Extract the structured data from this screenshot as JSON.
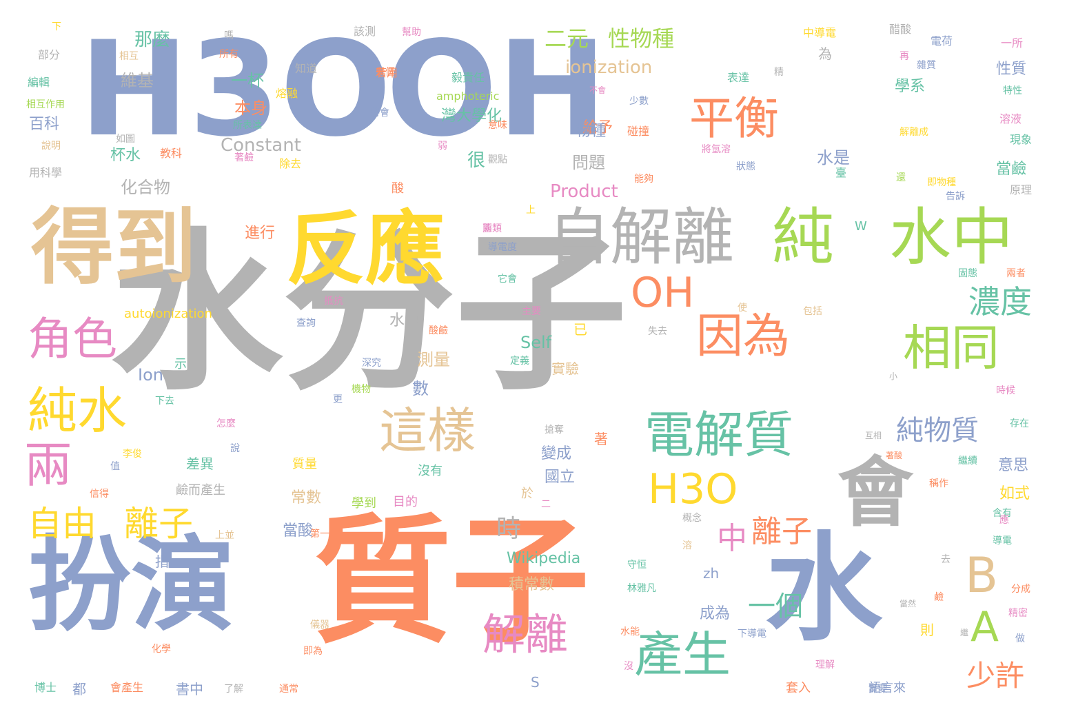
{
  "palette": {
    "periwinkle": "#8da0cb",
    "gray": "#b3b3b3",
    "orange": "#fc8d62",
    "tan": "#e5c494",
    "yellow": "#ffd92f",
    "green": "#a6d854",
    "teal": "#66c2a5",
    "pink": "#e78ac3"
  },
  "words": [
    {
      "text": "H3O",
      "size": 190,
      "color": "#8da0cb"
    },
    {
      "text": "OH",
      "size": 190,
      "color": "#8da0cb"
    },
    {
      "text": "水分子",
      "size": 250,
      "color": "#b3b3b3"
    },
    {
      "text": "質子",
      "size": 200,
      "color": "#fc8d62"
    },
    {
      "text": "扮演",
      "size": 150,
      "color": "#8da0cb"
    },
    {
      "text": "水",
      "size": 170,
      "color": "#8da0cb"
    },
    {
      "text": "得到",
      "size": 120,
      "color": "#e5c494"
    },
    {
      "text": "反應",
      "size": 115,
      "color": "#ffd92f"
    },
    {
      "text": "自解離",
      "size": 90,
      "color": "#b3b3b3"
    },
    {
      "text": "純",
      "size": 90,
      "color": "#a6d854"
    },
    {
      "text": "水中",
      "size": 90,
      "color": "#a6d854"
    },
    {
      "text": "會",
      "size": 110,
      "color": "#b3b3b3"
    },
    {
      "text": "平衡",
      "size": 65,
      "color": "#fc8d62"
    },
    {
      "text": "OH",
      "size": 60,
      "color": "#fc8d62"
    },
    {
      "text": "因為",
      "size": 68,
      "color": "#fc8d62"
    },
    {
      "text": "相同",
      "size": 70,
      "color": "#a6d854"
    },
    {
      "text": "角色",
      "size": 65,
      "color": "#e78ac3"
    },
    {
      "text": "純水",
      "size": 72,
      "color": "#ffd92f"
    },
    {
      "text": "兩",
      "size": 70,
      "color": "#e78ac3"
    },
    {
      "text": "這樣",
      "size": 70,
      "color": "#e5c494"
    },
    {
      "text": "電解質",
      "size": 72,
      "color": "#66c2a5"
    },
    {
      "text": "H3O",
      "size": 60,
      "color": "#ffd92f"
    },
    {
      "text": "自由",
      "size": 50,
      "color": "#ffd92f"
    },
    {
      "text": "離子",
      "size": 50,
      "color": "#ffd92f"
    },
    {
      "text": "中",
      "size": 44,
      "color": "#e78ac3"
    },
    {
      "text": "離子",
      "size": 44,
      "color": "#fc8d62"
    },
    {
      "text": "解離",
      "size": 62,
      "color": "#e78ac3"
    },
    {
      "text": "產生",
      "size": 70,
      "color": "#66c2a5"
    },
    {
      "text": "B",
      "size": 70,
      "color": "#e5c494"
    },
    {
      "text": "A",
      "size": 60,
      "color": "#a6d854"
    },
    {
      "text": "濃度",
      "size": 46,
      "color": "#66c2a5"
    },
    {
      "text": "純物質",
      "size": 40,
      "color": "#8da0cb"
    },
    {
      "text": "一個",
      "size": 40,
      "color": "#66c2a5"
    },
    {
      "text": "少許",
      "size": 42,
      "color": "#fc8d62"
    },
    {
      "text": "時",
      "size": 36,
      "color": "#b3b3b3"
    },
    {
      "text": "二元",
      "size": 32,
      "color": "#a6d854"
    },
    {
      "text": "性物種",
      "size": 32,
      "color": "#a6d854"
    },
    {
      "text": "那麼",
      "size": 26,
      "color": "#66c2a5"
    },
    {
      "text": "ionization",
      "size": 26,
      "color": "#e5c494"
    },
    {
      "text": "一杯",
      "size": 24,
      "color": "#66c2a5"
    },
    {
      "text": "維基",
      "size": 24,
      "color": "#b3b3b3"
    },
    {
      "text": "本身",
      "size": 24,
      "color": "#fc8d62"
    },
    {
      "text": "百科",
      "size": 22,
      "color": "#8da0cb"
    },
    {
      "text": "給予",
      "size": 22,
      "color": "#fc8d62"
    },
    {
      "text": "灣大學化",
      "size": 22,
      "color": "#66c2a5"
    },
    {
      "text": "物種",
      "size": 22,
      "color": "#8da0cb"
    },
    {
      "text": "Constant",
      "size": 26,
      "color": "#b3b3b3"
    },
    {
      "text": "杯水",
      "size": 22,
      "color": "#66c2a5"
    },
    {
      "text": "很",
      "size": 26,
      "color": "#66c2a5"
    },
    {
      "text": "問題",
      "size": 24,
      "color": "#b3b3b3"
    },
    {
      "text": "化合物",
      "size": 24,
      "color": "#b3b3b3"
    },
    {
      "text": "Product",
      "size": 26,
      "color": "#e78ac3"
    },
    {
      "text": "水是",
      "size": 24,
      "color": "#8da0cb"
    },
    {
      "text": "當鹼",
      "size": 22,
      "color": "#66c2a5"
    },
    {
      "text": "學系",
      "size": 22,
      "color": "#66c2a5"
    },
    {
      "text": "性質",
      "size": 22,
      "color": "#8da0cb"
    },
    {
      "text": "進行",
      "size": 22,
      "color": "#fc8d62"
    },
    {
      "text": "autoionization",
      "size": 18,
      "color": "#ffd92f"
    },
    {
      "text": "水中",
      "size": 22,
      "color": "#b3b3b3"
    },
    {
      "text": "測量",
      "size": 24,
      "color": "#e5c494"
    },
    {
      "text": "數",
      "size": 24,
      "color": "#8da0cb"
    },
    {
      "text": "Self",
      "size": 24,
      "color": "#66c2a5"
    },
    {
      "text": "實驗",
      "size": 20,
      "color": "#e5c494"
    },
    {
      "text": "Ion",
      "size": 24,
      "color": "#8da0cb"
    },
    {
      "text": "變成",
      "size": 22,
      "color": "#8da0cb"
    },
    {
      "text": "國立",
      "size": 22,
      "color": "#8da0cb"
    },
    {
      "text": "常數",
      "size": 22,
      "color": "#e5c494"
    },
    {
      "text": "當酸",
      "size": 22,
      "color": "#8da0cb"
    },
    {
      "text": "如式",
      "size": 22,
      "color": "#ffd92f"
    },
    {
      "text": "意思",
      "size": 22,
      "color": "#8da0cb"
    },
    {
      "text": "Wikipedia",
      "size": 22,
      "color": "#66c2a5"
    },
    {
      "text": "積常數",
      "size": 22,
      "color": "#e5c494"
    },
    {
      "text": "成為",
      "size": 22,
      "color": "#8da0cb"
    },
    {
      "text": "zh",
      "size": 20,
      "color": "#8da0cb"
    },
    {
      "text": "都",
      "size": 20,
      "color": "#8da0cb"
    },
    {
      "text": "書中",
      "size": 20,
      "color": "#8da0cb"
    },
    {
      "text": "指",
      "size": 20,
      "color": "#8da0cb"
    },
    {
      "text": "差異",
      "size": 20,
      "color": "#66c2a5"
    },
    {
      "text": "鹼而產生",
      "size": 18,
      "color": "#b3b3b3"
    },
    {
      "text": "質量",
      "size": 18,
      "color": "#ffd92f"
    },
    {
      "text": "沒有",
      "size": 18,
      "color": "#66c2a5"
    },
    {
      "text": "學到",
      "size": 18,
      "color": "#a6d854"
    },
    {
      "text": "目的",
      "size": 18,
      "color": "#e78ac3"
    },
    {
      "text": "則",
      "size": 20,
      "color": "#ffd92f"
    },
    {
      "text": "S",
      "size": 20,
      "color": "#8da0cb"
    },
    {
      "text": "套入",
      "size": 18,
      "color": "#fc8d62"
    },
    {
      "text": "語言來",
      "size": 18,
      "color": "#8da0cb"
    },
    {
      "text": "中導電",
      "size": 16,
      "color": "#ffd92f"
    },
    {
      "text": "醋酸",
      "size": 16,
      "color": "#b3b3b3"
    },
    {
      "text": "電荷",
      "size": 16,
      "color": "#8da0cb"
    },
    {
      "text": "一所",
      "size": 16,
      "color": "#e78ac3"
    },
    {
      "text": "該測",
      "size": 16,
      "color": "#b3b3b3"
    },
    {
      "text": "幫助",
      "size": 14,
      "color": "#e78ac3"
    },
    {
      "text": "若用",
      "size": 16,
      "color": "#fc8d62"
    },
    {
      "text": "知道",
      "size": 16,
      "color": "#b3b3b3"
    },
    {
      "text": "熔融",
      "size": 16,
      "color": "#ffd92f"
    },
    {
      "text": "毅責任",
      "size": 16,
      "color": "#66c2a5"
    },
    {
      "text": "amphoteric",
      "size": 16,
      "color": "#a6d854"
    },
    {
      "text": "表達",
      "size": 16,
      "color": "#66c2a5"
    },
    {
      "text": "雜質",
      "size": 14,
      "color": "#8da0cb"
    },
    {
      "text": "特性",
      "size": 14,
      "color": "#66c2a5"
    },
    {
      "text": "溶液",
      "size": 16,
      "color": "#e78ac3"
    },
    {
      "text": "現象",
      "size": 16,
      "color": "#66c2a5"
    },
    {
      "text": "原理",
      "size": 16,
      "color": "#b3b3b3"
    },
    {
      "text": "告訴",
      "size": 14,
      "color": "#8da0cb"
    },
    {
      "text": "部分",
      "size": 16,
      "color": "#b3b3b3"
    },
    {
      "text": "編輯",
      "size": 16,
      "color": "#66c2a5"
    },
    {
      "text": "相互作用",
      "size": 14,
      "color": "#a6d854"
    },
    {
      "text": "說明",
      "size": 14,
      "color": "#e5c494"
    },
    {
      "text": "用科學",
      "size": 16,
      "color": "#b3b3b3"
    },
    {
      "text": "相互",
      "size": 14,
      "color": "#e5c494"
    },
    {
      "text": "所有",
      "size": 14,
      "color": "#fc8d62"
    },
    {
      "text": "所表達",
      "size": 14,
      "color": "#66c2a5"
    },
    {
      "text": "如圖",
      "size": 14,
      "color": "#b3b3b3"
    },
    {
      "text": "教科",
      "size": 16,
      "color": "#fc8d62"
    },
    {
      "text": "著鹼",
      "size": 14,
      "color": "#e78ac3"
    },
    {
      "text": "除去",
      "size": 16,
      "color": "#ffd92f"
    },
    {
      "text": "碰撞",
      "size": 16,
      "color": "#fc8d62"
    },
    {
      "text": "將氫溶",
      "size": 14,
      "color": "#e78ac3"
    },
    {
      "text": "狀態",
      "size": 14,
      "color": "#8da0cb"
    },
    {
      "text": "能夠",
      "size": 14,
      "color": "#fc8d62"
    },
    {
      "text": "少數",
      "size": 14,
      "color": "#8da0cb"
    },
    {
      "text": "將會",
      "size": 14,
      "color": "#8da0cb"
    },
    {
      "text": "幾個",
      "size": 14,
      "color": "#fc8d62"
    },
    {
      "text": "弱",
      "size": 14,
      "color": "#e78ac3"
    },
    {
      "text": "意味",
      "size": 14,
      "color": "#fc8d62"
    },
    {
      "text": "觀點",
      "size": 14,
      "color": "#b3b3b3"
    },
    {
      "text": "解離成",
      "size": 14,
      "color": "#ffd92f"
    },
    {
      "text": "即物種",
      "size": 14,
      "color": "#ffd92f"
    },
    {
      "text": "臺",
      "size": 16,
      "color": "#66c2a5"
    },
    {
      "text": "酸",
      "size": 18,
      "color": "#fc8d62"
    },
    {
      "text": "W",
      "size": 18,
      "color": "#66c2a5"
    },
    {
      "text": "兩類",
      "size": 14,
      "color": "#e78ac3"
    },
    {
      "text": "導電度",
      "size": 14,
      "color": "#8da0cb"
    },
    {
      "text": "它會",
      "size": 14,
      "color": "#66c2a5"
    },
    {
      "text": "抵抗",
      "size": 14,
      "color": "#e78ac3"
    },
    {
      "text": "查詢",
      "size": 14,
      "color": "#8da0cb"
    },
    {
      "text": "酸鹼",
      "size": 14,
      "color": "#fc8d62"
    },
    {
      "text": "主要",
      "size": 14,
      "color": "#e78ac3"
    },
    {
      "text": "包括",
      "size": 14,
      "color": "#e5c494"
    },
    {
      "text": "失去",
      "size": 14,
      "color": "#b3b3b3"
    },
    {
      "text": "定義",
      "size": 14,
      "color": "#66c2a5"
    },
    {
      "text": "深究",
      "size": 14,
      "color": "#8da0cb"
    },
    {
      "text": "機物",
      "size": 14,
      "color": "#a6d854"
    },
    {
      "text": "固態",
      "size": 14,
      "color": "#66c2a5"
    },
    {
      "text": "兩者",
      "size": 14,
      "color": "#fc8d62"
    },
    {
      "text": "時候",
      "size": 14,
      "color": "#e78ac3"
    },
    {
      "text": "存在",
      "size": 14,
      "color": "#66c2a5"
    },
    {
      "text": "互相",
      "size": 12,
      "color": "#b3b3b3"
    },
    {
      "text": "著酸",
      "size": 12,
      "color": "#fc8d62"
    },
    {
      "text": "繼續",
      "size": 14,
      "color": "#66c2a5"
    },
    {
      "text": "稱作",
      "size": 14,
      "color": "#fc8d62"
    },
    {
      "text": "含有",
      "size": 14,
      "color": "#66c2a5"
    },
    {
      "text": "導電",
      "size": 14,
      "color": "#66c2a5"
    },
    {
      "text": "分成",
      "size": 14,
      "color": "#fc8d62"
    },
    {
      "text": "精密",
      "size": 14,
      "color": "#e78ac3"
    },
    {
      "text": "鹼",
      "size": 14,
      "color": "#fc8d62"
    },
    {
      "text": "當然",
      "size": 12,
      "color": "#b3b3b3"
    },
    {
      "text": "做",
      "size": 14,
      "color": "#8da0cb"
    },
    {
      "text": "實要",
      "size": 14,
      "color": "#8da0cb"
    },
    {
      "text": "理解",
      "size": 14,
      "color": "#e78ac3"
    },
    {
      "text": "下導電",
      "size": 14,
      "color": "#8da0cb"
    },
    {
      "text": "林雅凡",
      "size": 14,
      "color": "#66c2a5"
    },
    {
      "text": "守恒",
      "size": 14,
      "color": "#66c2a5"
    },
    {
      "text": "概念",
      "size": 14,
      "color": "#b3b3b3"
    },
    {
      "text": "搶奪",
      "size": 14,
      "color": "#b3b3b3"
    },
    {
      "text": "著",
      "size": 20,
      "color": "#fc8d62"
    },
    {
      "text": "於",
      "size": 18,
      "color": "#e5c494"
    },
    {
      "text": "二",
      "size": 14,
      "color": "#e78ac3"
    },
    {
      "text": "儀器",
      "size": 14,
      "color": "#e5c494"
    },
    {
      "text": "即為",
      "size": 14,
      "color": "#fc8d62"
    },
    {
      "text": "通常",
      "size": 14,
      "color": "#fc8d62"
    },
    {
      "text": "了解",
      "size": 14,
      "color": "#b3b3b3"
    },
    {
      "text": "會產生",
      "size": 16,
      "color": "#fc8d62"
    },
    {
      "text": "博士",
      "size": 16,
      "color": "#66c2a5"
    },
    {
      "text": "化學",
      "size": 14,
      "color": "#fc8d62"
    },
    {
      "text": "水能",
      "size": 14,
      "color": "#fc8d62"
    },
    {
      "text": "上並",
      "size": 14,
      "color": "#e5c494"
    },
    {
      "text": "第一",
      "size": 14,
      "color": "#fc8d62"
    },
    {
      "text": "信得",
      "size": 14,
      "color": "#fc8d62"
    },
    {
      "text": "李俊",
      "size": 14,
      "color": "#ffd92f"
    },
    {
      "text": "怎麼",
      "size": 14,
      "color": "#e78ac3"
    },
    {
      "text": "下去",
      "size": 14,
      "color": "#66c2a5"
    },
    {
      "text": "更",
      "size": 14,
      "color": "#8da0cb"
    },
    {
      "text": "說",
      "size": 14,
      "color": "#8da0cb"
    },
    {
      "text": "示",
      "size": 18,
      "color": "#66c2a5"
    },
    {
      "text": "已",
      "size": 20,
      "color": "#ffd92f"
    },
    {
      "text": "為",
      "size": 20,
      "color": "#b3b3b3"
    },
    {
      "text": "下",
      "size": 14,
      "color": "#ffd92f"
    },
    {
      "text": "嗎",
      "size": 14,
      "color": "#b3b3b3"
    },
    {
      "text": "上",
      "size": 14,
      "color": "#ffd92f"
    },
    {
      "text": "使",
      "size": 14,
      "color": "#e5c494"
    },
    {
      "text": "小",
      "size": 12,
      "color": "#b3b3b3"
    },
    {
      "text": "去",
      "size": 14,
      "color": "#b3b3b3"
    },
    {
      "text": "沒",
      "size": 14,
      "color": "#e78ac3"
    },
    {
      "text": "應",
      "size": 14,
      "color": "#e78ac3"
    },
    {
      "text": "溶",
      "size": 14,
      "color": "#e5c494"
    },
    {
      "text": "精",
      "size": 14,
      "color": "#b3b3b3"
    },
    {
      "text": "再",
      "size": 14,
      "color": "#e78ac3"
    },
    {
      "text": "還",
      "size": 14,
      "color": "#a6d854"
    },
    {
      "text": "態",
      "size": 14,
      "color": "#e78ac3"
    },
    {
      "text": "值",
      "size": 14,
      "color": "#8da0cb"
    },
    {
      "text": "繼",
      "size": 12,
      "color": "#b3b3b3"
    },
    {
      "text": "不會",
      "size": 12,
      "color": "#e78ac3"
    }
  ]
}
